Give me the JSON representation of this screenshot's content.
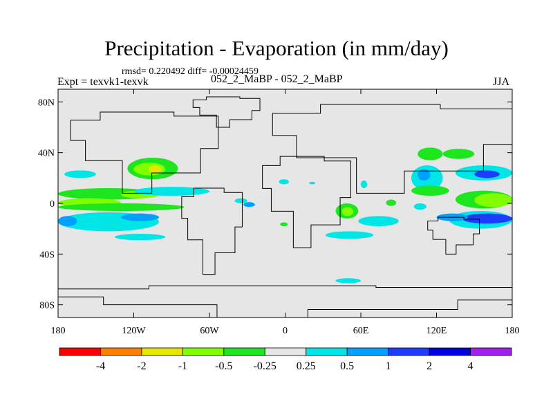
{
  "header": {
    "title": "Precipitation - Evaporation (in mm/day)",
    "stats": "rmsd= 0.220492 diff= -0.00024459",
    "left_label": "Expt = texvk1-texvk",
    "center_label": "052_2_MaBP - 052_2_MaBP",
    "right_label": "JJA"
  },
  "chart_data": {
    "type": "heatmap",
    "title": "Precipitation - Evaporation (in mm/day)",
    "xlabel": "",
    "ylabel": "",
    "x_ticks": [
      "180",
      "120W",
      "60W",
      "0",
      "60E",
      "120E",
      "180"
    ],
    "x_tick_values": [
      -180,
      -120,
      -60,
      0,
      60,
      120,
      180
    ],
    "y_ticks": [
      "80N",
      "40N",
      "0",
      "40S",
      "80S"
    ],
    "y_tick_values": [
      80,
      40,
      0,
      -40,
      -80
    ],
    "xlim": [
      -180,
      180
    ],
    "ylim": [
      -90,
      90
    ],
    "background_color": "#e6e6e6",
    "colorbar": {
      "labels": [
        "-4",
        "-2",
        "-1",
        "-0.5",
        "-0.25",
        "0.25",
        "0.5",
        "1",
        "2",
        "4"
      ],
      "colors": [
        "#ff0000",
        "#ff8000",
        "#e6e600",
        "#80ff00",
        "#1ee61e",
        "#e6e6e6",
        "#00e6e6",
        "#00a0ff",
        "#1e3cff",
        "#0000e0",
        "#a020f0"
      ]
    },
    "anomaly_regions": [
      {
        "lon": [
          -175,
          -150
        ],
        "lat": [
          20,
          26
        ],
        "level": 6
      },
      {
        "lon": [
          -125,
          -85
        ],
        "lat": [
          19,
          36
        ],
        "level": 4
      },
      {
        "lon": [
          -120,
          -95
        ],
        "lat": [
          22,
          32
        ],
        "level": 3
      },
      {
        "lon": [
          -108,
          -98
        ],
        "lat": [
          24,
          30
        ],
        "level": 2
      },
      {
        "lon": [
          -180,
          -100
        ],
        "lat": [
          3,
          12
        ],
        "level": 4
      },
      {
        "lon": [
          -130,
          -100
        ],
        "lat": [
          4,
          10
        ],
        "level": 3
      },
      {
        "lon": [
          -120,
          -60
        ],
        "lat": [
          6,
          13
        ],
        "level": 6
      },
      {
        "lon": [
          -180,
          -130
        ],
        "lat": [
          -3,
          4
        ],
        "level": 3
      },
      {
        "lon": [
          -180,
          -80
        ],
        "lat": [
          -6,
          0
        ],
        "level": 4
      },
      {
        "lon": [
          -180,
          -100
        ],
        "lat": [
          -22,
          -7
        ],
        "level": 6
      },
      {
        "lon": [
          -180,
          -165
        ],
        "lat": [
          -18,
          -10
        ],
        "level": 7
      },
      {
        "lon": [
          -130,
          -100
        ],
        "lat": [
          -14,
          -8
        ],
        "level": 7
      },
      {
        "lon": [
          -135,
          -95
        ],
        "lat": [
          -29,
          -24
        ],
        "level": 6
      },
      {
        "lon": [
          -40,
          -30
        ],
        "lat": [
          0,
          4
        ],
        "level": 6
      },
      {
        "lon": [
          -33,
          -24
        ],
        "lat": [
          -3,
          1
        ],
        "level": 7
      },
      {
        "lon": [
          -5,
          3
        ],
        "lat": [
          15,
          19
        ],
        "level": 6
      },
      {
        "lon": [
          19,
          24
        ],
        "lat": [
          15,
          17
        ],
        "level": 6
      },
      {
        "lon": [
          40,
          58
        ],
        "lat": [
          -12,
          0
        ],
        "level": 4
      },
      {
        "lon": [
          45,
          54
        ],
        "lat": [
          -10,
          -3
        ],
        "level": 3
      },
      {
        "lon": [
          32,
          70
        ],
        "lat": [
          -28,
          -22
        ],
        "level": 6
      },
      {
        "lon": [
          58,
          90
        ],
        "lat": [
          -18,
          -10
        ],
        "level": 6
      },
      {
        "lon": [
          40,
          60
        ],
        "lat": [
          -63,
          -59
        ],
        "level": 6
      },
      {
        "lon": [
          60,
          65
        ],
        "lat": [
          12,
          18
        ],
        "level": 6
      },
      {
        "lon": [
          105,
          125
        ],
        "lat": [
          34,
          44
        ],
        "level": 4
      },
      {
        "lon": [
          125,
          150
        ],
        "lat": [
          35,
          43
        ],
        "level": 4
      },
      {
        "lon": [
          100,
          125
        ],
        "lat": [
          10,
          30
        ],
        "level": 6
      },
      {
        "lon": [
          105,
          115
        ],
        "lat": [
          18,
          27
        ],
        "level": 7
      },
      {
        "lon": [
          100,
          130
        ],
        "lat": [
          6,
          14
        ],
        "level": 4
      },
      {
        "lon": [
          135,
          180
        ],
        "lat": [
          18,
          30
        ],
        "level": 6
      },
      {
        "lon": [
          150,
          170
        ],
        "lat": [
          20,
          26
        ],
        "level": 8
      },
      {
        "lon": [
          135,
          180
        ],
        "lat": [
          -4,
          10
        ],
        "level": 4
      },
      {
        "lon": [
          150,
          180
        ],
        "lat": [
          -3,
          8
        ],
        "level": 3
      },
      {
        "lon": [
          130,
          180
        ],
        "lat": [
          -20,
          -6
        ],
        "level": 6
      },
      {
        "lon": [
          140,
          180
        ],
        "lat": [
          -16,
          -8
        ],
        "level": 8
      },
      {
        "lon": [
          120,
          145
        ],
        "lat": [
          -14,
          -8
        ],
        "level": 7
      },
      {
        "lon": [
          102,
          112
        ],
        "lat": [
          -5,
          0
        ],
        "level": 6
      },
      {
        "lon": [
          80,
          88
        ],
        "lat": [
          -2,
          3
        ],
        "level": 4
      },
      {
        "lon": [
          -4,
          2
        ],
        "lat": [
          -18,
          -15
        ],
        "level": 4
      }
    ],
    "coastline_regions": [
      {
        "name": "greenland",
        "lon": [
          -73,
          -20
        ],
        "lat": [
          60,
          84
        ]
      },
      {
        "name": "north-america",
        "lon": [
          -170,
          -53
        ],
        "lat": [
          8,
          72
        ]
      },
      {
        "name": "south-america",
        "lon": [
          -82,
          -34
        ],
        "lat": [
          -56,
          12
        ]
      },
      {
        "name": "europe-asia",
        "lon": [
          -10,
          180
        ],
        "lat": [
          8,
          78
        ]
      },
      {
        "name": "africa",
        "lon": [
          -18,
          52
        ],
        "lat": [
          -35,
          37
        ]
      },
      {
        "name": "australia",
        "lon": [
          113,
          154
        ],
        "lat": [
          -40,
          -11
        ]
      },
      {
        "name": "antarctica",
        "lon": [
          -180,
          180
        ],
        "lat": [
          -90,
          -65
        ]
      }
    ]
  }
}
